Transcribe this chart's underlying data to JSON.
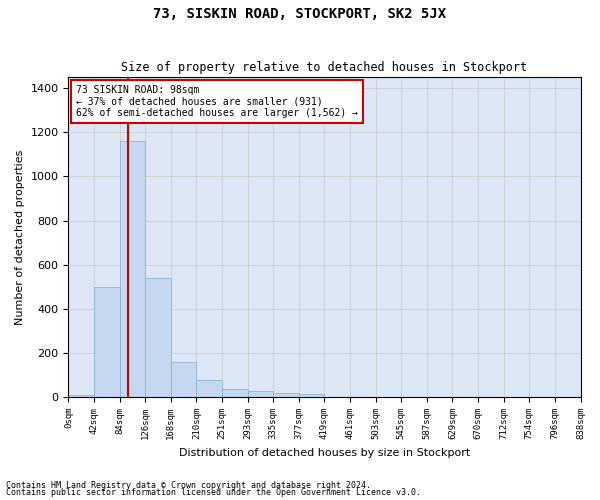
{
  "title": "73, SISKIN ROAD, STOCKPORT, SK2 5JX",
  "subtitle": "Size of property relative to detached houses in Stockport",
  "xlabel": "Distribution of detached houses by size in Stockport",
  "ylabel": "Number of detached properties",
  "footnote1": "Contains HM Land Registry data © Crown copyright and database right 2024.",
  "footnote2": "Contains public sector information licensed under the Open Government Licence v3.0.",
  "bar_values": [
    10,
    500,
    1160,
    540,
    160,
    80,
    35,
    30,
    20,
    15,
    0,
    0,
    0,
    0,
    0,
    0,
    0,
    0,
    0,
    0
  ],
  "bin_labels": [
    "0sqm",
    "42sqm",
    "84sqm",
    "126sqm",
    "168sqm",
    "210sqm",
    "251sqm",
    "293sqm",
    "335sqm",
    "377sqm",
    "419sqm",
    "461sqm",
    "503sqm",
    "545sqm",
    "587sqm",
    "629sqm",
    "670sqm",
    "712sqm",
    "754sqm",
    "796sqm",
    "838sqm"
  ],
  "bar_color": "#c5d8f0",
  "bar_edge_color": "#7bafd4",
  "grid_color": "#c8c8c8",
  "bg_color": "#dce6f5",
  "vline_x": 2.33,
  "vline_color": "#cc0000",
  "annotation_text": "73 SISKIN ROAD: 98sqm\n← 37% of detached houses are smaller (931)\n62% of semi-detached houses are larger (1,562) →",
  "annotation_box_color": "#cc0000",
  "ylim": [
    0,
    1450
  ],
  "yticks": [
    0,
    200,
    400,
    600,
    800,
    1000,
    1200,
    1400
  ]
}
